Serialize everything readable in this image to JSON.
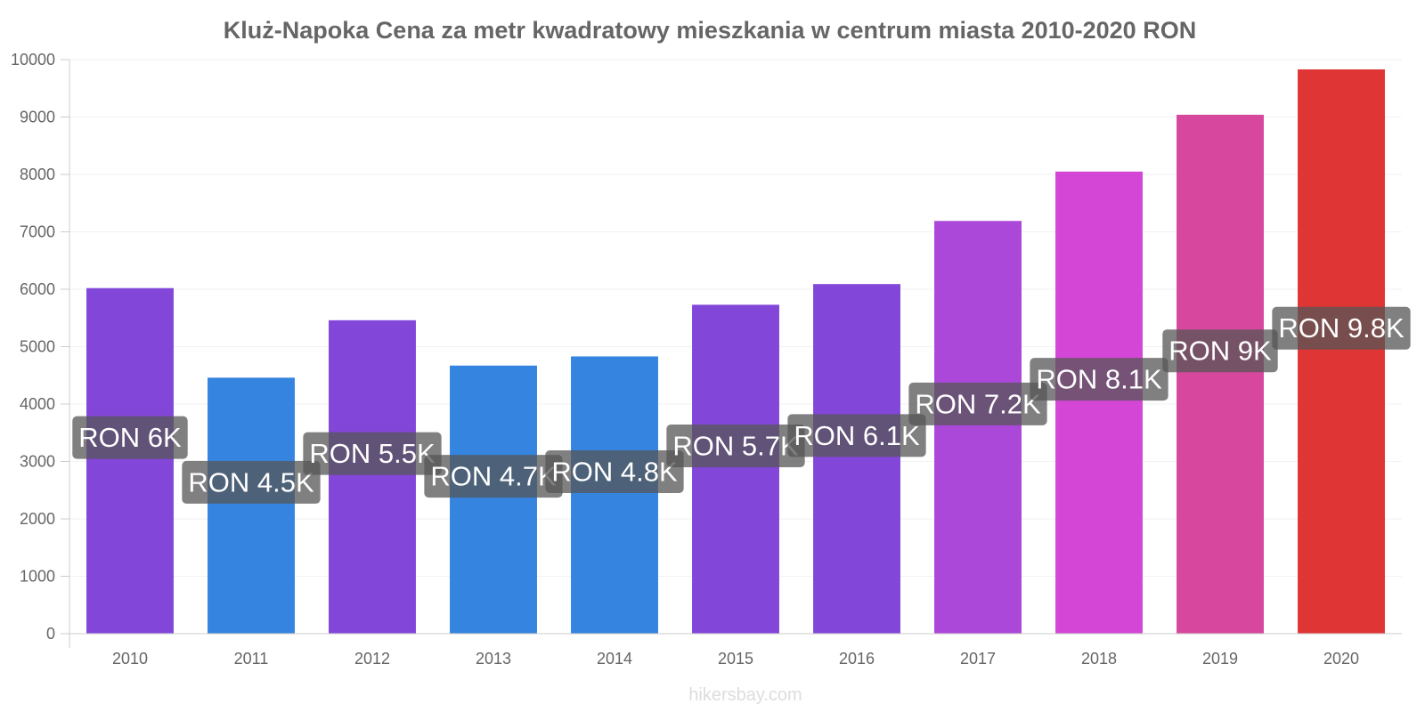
{
  "chart_data": {
    "type": "bar",
    "title": "Kluż-Napoka Cena za metr kwadratowy mieszkania w centrum miasta 2010-2020 RON",
    "xlabel": "",
    "ylabel": "",
    "ylim": [
      0,
      10000
    ],
    "yticks": [
      0,
      1000,
      2000,
      3000,
      4000,
      5000,
      6000,
      7000,
      8000,
      9000,
      10000
    ],
    "grid": true,
    "legend": "none",
    "categories": [
      "2010",
      "2011",
      "2012",
      "2013",
      "2014",
      "2015",
      "2016",
      "2017",
      "2018",
      "2019",
      "2020"
    ],
    "values": [
      6020,
      4460,
      5460,
      4670,
      4830,
      5730,
      6090,
      7190,
      8050,
      9040,
      9830
    ],
    "data_labels": [
      "RON 6K",
      "RON 4.5K",
      "RON 5.5K",
      "RON 4.7K",
      "RON 4.8K",
      "RON 5.7K",
      "RON 6.1K",
      "RON 7.2K",
      "RON 8.1K",
      "RON 9K",
      "RON 9.8K"
    ],
    "colors": [
      "#8247d9",
      "#3584e0",
      "#8247d9",
      "#3584e0",
      "#3584e0",
      "#8247d9",
      "#8247d9",
      "#ab47d9",
      "#d447d6",
      "#d6479d",
      "#e03535"
    ],
    "label_box_color": "#555555"
  },
  "source": "hikersbay.com"
}
